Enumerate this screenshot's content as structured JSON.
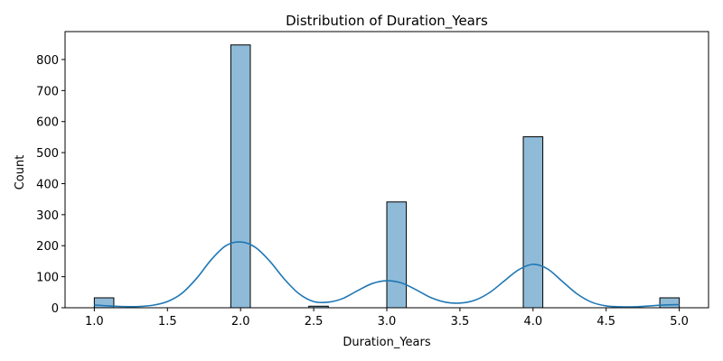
{
  "chart_data": {
    "type": "bar",
    "title": "Distribution of Duration_Years",
    "xlabel": "Duration_Years",
    "ylabel": "Count",
    "xlim": [
      0.8,
      5.2
    ],
    "ylim": [
      0,
      890
    ],
    "bin_width": 0.1333,
    "bars": [
      {
        "x_start": 1.0,
        "x_end": 1.1333,
        "count": 32
      },
      {
        "x_start": 1.9333,
        "x_end": 2.0667,
        "count": 847
      },
      {
        "x_start": 2.4667,
        "x_end": 2.6,
        "count": 5
      },
      {
        "x_start": 3.0,
        "x_end": 3.1333,
        "count": 341
      },
      {
        "x_start": 3.9333,
        "x_end": 4.0667,
        "count": 551
      },
      {
        "x_start": 4.8667,
        "x_end": 5.0,
        "count": 32
      }
    ],
    "kde": {
      "x": [
        1.0,
        1.1,
        1.2,
        1.3,
        1.4,
        1.5,
        1.6,
        1.7,
        1.8,
        1.9,
        2.0,
        2.1,
        2.2,
        2.3,
        2.4,
        2.5,
        2.6,
        2.7,
        2.8,
        2.9,
        3.0,
        3.1,
        3.2,
        3.3,
        3.4,
        3.5,
        3.6,
        3.7,
        3.8,
        3.9,
        4.0,
        4.1,
        4.2,
        4.3,
        4.4,
        4.5,
        4.6,
        4.7,
        4.8,
        4.9,
        5.0
      ],
      "y": [
        9,
        6,
        4,
        4,
        8,
        20,
        47,
        95,
        155,
        200,
        212,
        195,
        150,
        92,
        45,
        20,
        18,
        30,
        55,
        78,
        87,
        80,
        58,
        33,
        18,
        15,
        24,
        48,
        85,
        122,
        140,
        125,
        85,
        45,
        18,
        6,
        3,
        3,
        6,
        9,
        10
      ]
    },
    "xticks": [
      1.0,
      1.5,
      2.0,
      2.5,
      3.0,
      3.5,
      4.0,
      4.5,
      5.0
    ],
    "xtick_labels": [
      "1.0",
      "1.5",
      "2.0",
      "2.5",
      "3.0",
      "3.5",
      "4.0",
      "4.5",
      "5.0"
    ],
    "yticks": [
      0,
      100,
      200,
      300,
      400,
      500,
      600,
      700,
      800
    ],
    "ytick_labels": [
      "0",
      "100",
      "200",
      "300",
      "400",
      "500",
      "600",
      "700",
      "800"
    ],
    "grid": false,
    "colors": {
      "bar_fill": "#8fbbd9",
      "bar_edge": "#000000",
      "kde_line": "#1f77b4"
    }
  }
}
